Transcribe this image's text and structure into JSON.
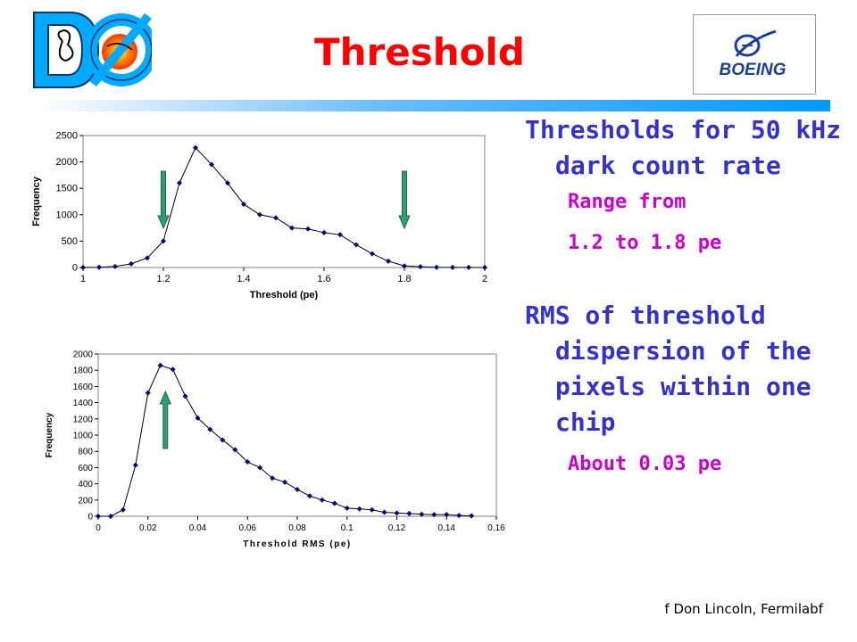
{
  "title": "Threshold",
  "logos": {
    "left": "D0",
    "right": "BOEING"
  },
  "bullets": [
    {
      "text": "Thresholds for 50 kHz dark count rate",
      "sub": [
        "Range from",
        "1.2 to 1.8 pe"
      ]
    },
    {
      "text": "RMS of threshold dispersion of the pixels within one chip",
      "sub": [
        "About 0.03 pe"
      ]
    }
  ],
  "footer": "f Don Lincoln, Fermilabf",
  "colors": {
    "title": "#ff0000",
    "bullet": "#3333cc",
    "subbullet": "#cc00cc",
    "series": "#000080",
    "arrow": "#2e9e6e"
  },
  "chart_data": [
    {
      "type": "line",
      "xlabel": "Threshold (pe)",
      "ylabel": "Frequency",
      "xlim": [
        1,
        2
      ],
      "ylim": [
        0,
        2500
      ],
      "xticks": [
        1,
        1.2,
        1.4,
        1.6,
        1.8,
        2
      ],
      "yticks": [
        0,
        500,
        1000,
        1500,
        2000,
        2500
      ],
      "grid": false,
      "series": [
        {
          "x": [
            1.0,
            1.04,
            1.08,
            1.12,
            1.16,
            1.2,
            1.24,
            1.28,
            1.32,
            1.36,
            1.4,
            1.44,
            1.48,
            1.52,
            1.56,
            1.6,
            1.64,
            1.68,
            1.72,
            1.76,
            1.8,
            1.84,
            1.88,
            1.92,
            1.96,
            2.0
          ],
          "y": [
            0,
            5,
            20,
            70,
            180,
            500,
            1600,
            2270,
            1950,
            1600,
            1200,
            1000,
            940,
            750,
            730,
            660,
            620,
            430,
            260,
            120,
            30,
            15,
            5,
            3,
            2,
            0
          ]
        }
      ],
      "annotations": [
        {
          "type": "arrow",
          "direction": "down",
          "x": 1.2
        },
        {
          "type": "arrow",
          "direction": "down",
          "x": 1.8
        }
      ]
    },
    {
      "type": "line",
      "xlabel": "Threshold RMS (pe)",
      "ylabel": "Frequency",
      "xlim": [
        0,
        0.16
      ],
      "ylim": [
        0,
        2000
      ],
      "xticks": [
        0,
        0.02,
        0.04,
        0.06,
        0.08,
        0.1,
        0.12,
        0.14,
        0.16
      ],
      "yticks": [
        0,
        200,
        400,
        600,
        800,
        1000,
        1200,
        1400,
        1600,
        1800,
        2000
      ],
      "grid": false,
      "series": [
        {
          "x": [
            0.0,
            0.005,
            0.01,
            0.015,
            0.02,
            0.025,
            0.03,
            0.035,
            0.04,
            0.045,
            0.05,
            0.055,
            0.06,
            0.065,
            0.07,
            0.075,
            0.08,
            0.085,
            0.09,
            0.095,
            0.1,
            0.105,
            0.11,
            0.115,
            0.12,
            0.125,
            0.13,
            0.135,
            0.14,
            0.145,
            0.15
          ],
          "y": [
            0,
            0,
            80,
            630,
            1520,
            1860,
            1810,
            1480,
            1210,
            1070,
            940,
            820,
            670,
            600,
            470,
            420,
            330,
            250,
            200,
            160,
            100,
            90,
            80,
            50,
            40,
            35,
            25,
            20,
            20,
            10,
            5
          ]
        }
      ],
      "annotations": [
        {
          "type": "arrow",
          "direction": "up",
          "x": 0.027
        }
      ]
    }
  ]
}
